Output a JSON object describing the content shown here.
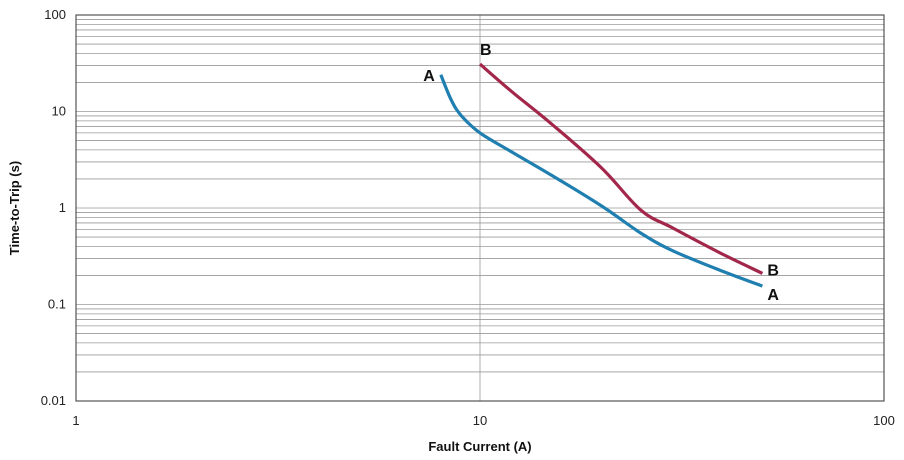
{
  "chart_data": {
    "type": "line",
    "xlabel": "Fault Current (A)",
    "ylabel": "Time-to-Trip (s)",
    "x_scale": "log",
    "y_scale": "log",
    "xlim": [
      1,
      100
    ],
    "ylim": [
      0.01,
      100
    ],
    "x_ticks": [
      "1",
      "10",
      "100"
    ],
    "y_ticks": [
      "0.01",
      "0.1",
      "1",
      "10",
      "100"
    ],
    "grid": true,
    "series": [
      {
        "name": "A",
        "color": "#1f7fb0",
        "x": [
          8.0,
          8.5,
          9.0,
          10.0,
          12.0,
          15.0,
          20.0,
          25.0,
          30.0,
          40.0,
          50.0
        ],
        "y": [
          24.0,
          13.0,
          9.0,
          6.0,
          3.8,
          2.2,
          1.05,
          0.55,
          0.36,
          0.22,
          0.155
        ]
      },
      {
        "name": "B",
        "color": "#a3274a",
        "x": [
          10.0,
          12.0,
          15.0,
          20.0,
          25.0,
          30.0,
          40.0,
          50.0
        ],
        "y": [
          31.0,
          16.0,
          7.5,
          2.6,
          0.95,
          0.62,
          0.33,
          0.21
        ]
      }
    ],
    "annotations": [
      {
        "text": "A",
        "at_series": "A",
        "point": "start",
        "side": "left"
      },
      {
        "text": "B",
        "at_series": "B",
        "point": "start",
        "side": "above"
      },
      {
        "text": "B",
        "at_series": "B",
        "point": "end",
        "side": "right"
      },
      {
        "text": "A",
        "at_series": "A",
        "point": "end",
        "side": "right"
      }
    ]
  }
}
